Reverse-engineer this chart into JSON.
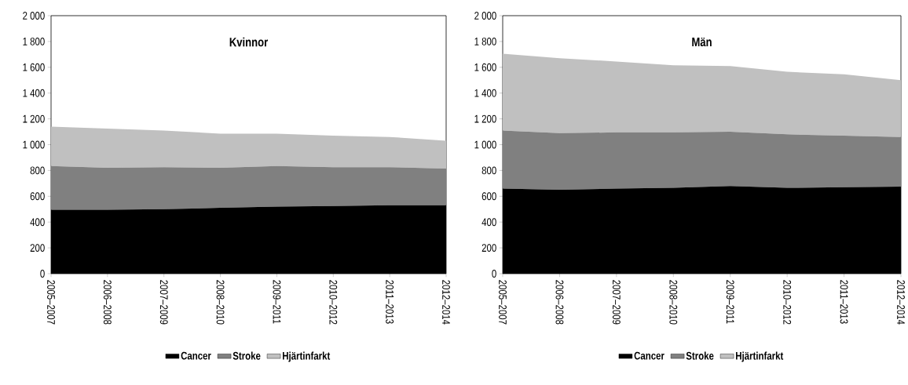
{
  "chart_data": [
    {
      "type": "area",
      "title": "Kvinnor",
      "stacked": true,
      "legend": "bottom",
      "grid": false,
      "categories": [
        "2005–2007",
        "2006–2008",
        "2007–2009",
        "2008–2010",
        "2009–2011",
        "2010–2012",
        "2011–2013",
        "2012–2014"
      ],
      "series": [
        {
          "name": "Cancer",
          "color": "#000000",
          "values": [
            495,
            495,
            500,
            510,
            520,
            525,
            530,
            530
          ]
        },
        {
          "name": "Stroke",
          "color": "#808080",
          "values": [
            340,
            325,
            325,
            310,
            315,
            300,
            295,
            285
          ]
        },
        {
          "name": "Hjärtinfarkt",
          "color": "#c0c0c0",
          "values": [
            305,
            305,
            285,
            265,
            250,
            245,
            235,
            215
          ]
        }
      ],
      "ylim": [
        0,
        2000
      ],
      "yticks": [
        0,
        200,
        400,
        600,
        800,
        {
          "value": 1000,
          "label": "1 000"
        },
        {
          "value": 1200,
          "label": "1 200"
        },
        {
          "value": 1400,
          "label": "1 400"
        },
        {
          "value": 1600,
          "label": "1 600"
        },
        {
          "value": 1800,
          "label": "1 800"
        },
        {
          "value": 2000,
          "label": "2 000"
        }
      ]
    },
    {
      "type": "area",
      "title": "Män",
      "stacked": true,
      "legend": "bottom",
      "grid": false,
      "categories": [
        "2005–2007",
        "2006–2008",
        "2007–2009",
        "2008–2010",
        "2009–2011",
        "2010–2012",
        "2011–2013",
        "2012–2014"
      ],
      "series": [
        {
          "name": "Cancer",
          "color": "#000000",
          "values": [
            660,
            650,
            660,
            665,
            680,
            665,
            670,
            675
          ]
        },
        {
          "name": "Stroke",
          "color": "#808080",
          "values": [
            450,
            440,
            435,
            430,
            420,
            415,
            400,
            385
          ]
        },
        {
          "name": "Hjärtinfarkt",
          "color": "#c0c0c0",
          "values": [
            595,
            580,
            550,
            520,
            510,
            485,
            475,
            440
          ]
        }
      ],
      "ylim": [
        0,
        2000
      ],
      "yticks": [
        0,
        200,
        400,
        600,
        800,
        {
          "value": 1000,
          "label": "1 000"
        },
        {
          "value": 1200,
          "label": "1 200"
        },
        {
          "value": 1400,
          "label": "1 400"
        },
        {
          "value": 1600,
          "label": "1 600"
        },
        {
          "value": 1800,
          "label": "1 800"
        },
        {
          "value": 2000,
          "label": "2 000"
        }
      ]
    }
  ]
}
